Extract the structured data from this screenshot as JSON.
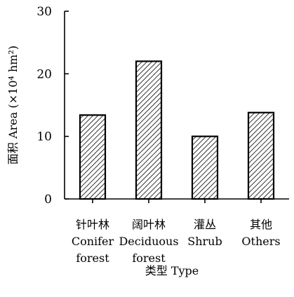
{
  "chart_data": {
    "type": "bar",
    "categories": [
      {
        "line1": "针叶林",
        "line2": "Conifer",
        "line3": "forest"
      },
      {
        "line1": "阔叶林",
        "line2": "Deciduous",
        "line3": "forest"
      },
      {
        "line1": "灌丛",
        "line2": "Shrub",
        "line3": ""
      },
      {
        "line1": "其他",
        "line2": "Others",
        "line3": ""
      }
    ],
    "values": [
      13.4,
      22.0,
      10.0,
      13.8
    ],
    "ylim": [
      0,
      30
    ],
    "yticks": [
      "0",
      "10",
      "20",
      "30"
    ],
    "ylabel": "面积 Area (×10⁴ hm²)",
    "xlabel": "类型 Type",
    "grid": false,
    "legend": "none",
    "bar_fill": "hatched",
    "colors": {
      "bar_stroke": "#000000",
      "hatch": "#000000",
      "background": "#ffffff"
    }
  }
}
